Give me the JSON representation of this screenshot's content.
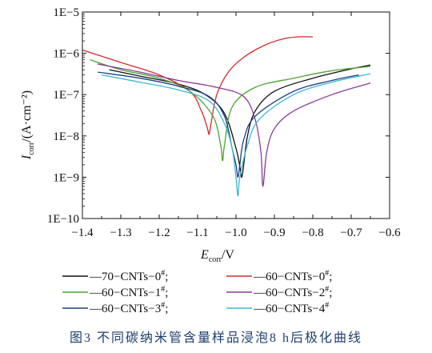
{
  "chart_data": {
    "type": "line",
    "title": "",
    "xlabel": "E_corr/V",
    "xlabel_main": "E",
    "xlabel_sub": "corr",
    "xlabel_unit": "/V",
    "ylabel_main": "I",
    "ylabel_sub": "corr",
    "ylabel_unit": "/(A·cm⁻²)",
    "xlim": [
      -1.4,
      -0.6
    ],
    "ylim_log10": [
      -10,
      -5
    ],
    "y_scale": "log",
    "xticks": [
      -1.4,
      -1.3,
      -1.2,
      -1.1,
      -1.0,
      -0.9,
      -0.8,
      -0.7,
      -0.6
    ],
    "xtick_labels": [
      "−1.4",
      "−1.3",
      "−1.2",
      "−1.1",
      "−1.0",
      "−0.9",
      "−0.8",
      "−0.7",
      "−0.6"
    ],
    "ytick_labels": [
      "1E−5",
      "1E−6",
      "1E−7",
      "1E−8",
      "1E−9",
      "1E−10"
    ],
    "grid": false,
    "legend_position": "bottom",
    "series": [
      {
        "name": "—70−CNTs−0#;",
        "label_text": "—70−CNTs−0",
        "sup": "#",
        "tail": ";",
        "color": "#111111",
        "x": [
          -1.33,
          -1.25,
          -1.15,
          -1.08,
          -1.03,
          -1.0,
          -0.99,
          -0.985,
          -0.98,
          -0.97,
          -0.95,
          -0.9,
          -0.8,
          -0.7,
          -0.65
        ],
        "y": [
          4e-07,
          2.8e-07,
          1.8e-07,
          1e-07,
          3.5e-08,
          5e-09,
          1.8e-09,
          1e-09,
          2e-09,
          1e-08,
          4e-08,
          1.2e-07,
          2.5e-07,
          4.2e-07,
          5.2e-07
        ]
      },
      {
        "name": "—60−CNTs−0#;",
        "label_text": "—60−CNTs−0",
        "sup": "#",
        "tail": ";",
        "color": "#d62b2b",
        "x": [
          -1.4,
          -1.3,
          -1.2,
          -1.12,
          -1.09,
          -1.075,
          -1.07,
          -1.065,
          -1.05,
          -1.02,
          -0.98,
          -0.93,
          -0.88,
          -0.84,
          -0.8
        ],
        "y": [
          1.2e-06,
          6e-07,
          3e-07,
          1.2e-07,
          4e-08,
          1.6e-08,
          1.1e-08,
          2e-08,
          1e-07,
          3.5e-07,
          8e-07,
          1.5e-06,
          2.2e-06,
          2.5e-06,
          2.5e-06
        ]
      },
      {
        "name": "—60−CNTs−1#;",
        "label_text": "—60−CNTs−1",
        "sup": "#",
        "tail": ";",
        "color": "#4aa52e",
        "x": [
          -1.38,
          -1.3,
          -1.2,
          -1.12,
          -1.06,
          -1.04,
          -1.035,
          -1.03,
          -1.01,
          -0.95,
          -0.85,
          -0.75,
          -0.65
        ],
        "y": [
          7e-07,
          4e-07,
          2.5e-07,
          1.2e-07,
          3e-08,
          6e-09,
          2.5e-09,
          6e-09,
          5e-08,
          1.5e-07,
          2.5e-07,
          3.8e-07,
          4.8e-07
        ]
      },
      {
        "name": "—60−CNTs−2#;",
        "label_text": "—60−CNTs−2",
        "sup": "#",
        "tail": ";",
        "color": "#8a3a9c",
        "x": [
          -1.36,
          -1.25,
          -1.15,
          -1.05,
          -0.98,
          -0.95,
          -0.935,
          -0.93,
          -0.92,
          -0.9,
          -0.85,
          -0.75,
          -0.65
        ],
        "y": [
          5.5e-07,
          3.5e-07,
          2.2e-07,
          1.5e-07,
          9e-08,
          2.5e-08,
          4e-09,
          6e-10,
          4e-09,
          1.5e-08,
          4e-08,
          1e-07,
          1.9e-07
        ]
      },
      {
        "name": "—60−CNTs−3#;",
        "label_text": "—60−CNTs−3",
        "sup": "#",
        "tail": ";",
        "color": "#1f3f86",
        "x": [
          -1.36,
          -1.25,
          -1.15,
          -1.07,
          -1.03,
          -1.01,
          -1.0,
          -0.995,
          -0.99,
          -0.98,
          -0.95,
          -0.85,
          -0.75,
          -0.68
        ],
        "y": [
          3.5e-07,
          2.5e-07,
          1.6e-07,
          9e-08,
          3e-08,
          5e-09,
          2e-09,
          1e-09,
          2e-09,
          8e-09,
          3e-08,
          1.2e-07,
          2.2e-07,
          3e-07
        ]
      },
      {
        "name": "—60−CNTs−4#",
        "label_text": "—60−CNTs−4",
        "sup": "#",
        "tail": "",
        "color": "#3bb9d1",
        "x": [
          -1.35,
          -1.25,
          -1.15,
          -1.07,
          -1.03,
          -1.01,
          -1.0,
          -0.995,
          -0.99,
          -0.97,
          -0.94,
          -0.85,
          -0.75,
          -0.65
        ],
        "y": [
          3e-07,
          2e-07,
          1.3e-07,
          7e-08,
          2e-08,
          5e-09,
          1e-09,
          3.5e-10,
          1e-09,
          6e-09,
          2.5e-08,
          1e-07,
          2e-07,
          3.2e-07
        ]
      }
    ]
  },
  "caption": "图3  不同碳纳米管含量样品浸泡8 h后极化曲线"
}
